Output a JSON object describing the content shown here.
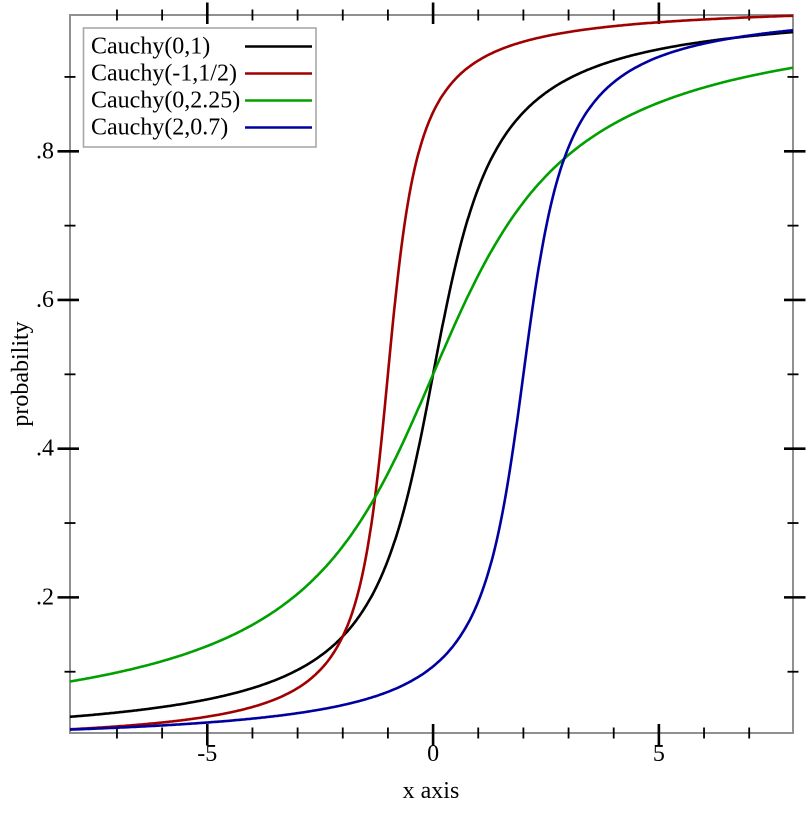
{
  "figure": {
    "background": "#ffffff",
    "frame_color": "#909090",
    "tick_color": "#000000",
    "legend_border_color": "#a8a8a8"
  },
  "chart_data": {
    "type": "line",
    "title": "",
    "xlabel": "x axis",
    "ylabel": "probability",
    "xlim": [
      -8.04,
      7.97
    ],
    "ylim": [
      0.0176,
      0.9833
    ],
    "grid": false,
    "legend_position": "top-left",
    "x_ticks": {
      "major_values": [
        -5,
        0,
        5
      ],
      "major_labels": [
        "-5",
        "0",
        "5"
      ],
      "minor_values": [
        -7,
        -6,
        -4,
        -3,
        -2,
        -1,
        1,
        2,
        3,
        4,
        6,
        7
      ]
    },
    "y_ticks": {
      "major_values": [
        0.2,
        0.4,
        0.6,
        0.8
      ],
      "major_labels": [
        ".2",
        ".4",
        ".6",
        ".8"
      ],
      "minor_values": [
        0.1,
        0.3,
        0.5,
        0.7,
        0.9
      ]
    },
    "curve_type": "cauchy-cdf",
    "formula": "y = 0.5 + atan((x - location) / scale) / PI",
    "series": [
      {
        "name": "Cauchy(0,1)",
        "location": 0,
        "scale": 1,
        "color": "#000000"
      },
      {
        "name": "Cauchy(-1,1/2)",
        "location": -1,
        "scale": 0.5,
        "color": "#a00000"
      },
      {
        "name": "Cauchy(0,2.25)",
        "location": 0,
        "scale": 2.25,
        "color": "#00a000"
      },
      {
        "name": "Cauchy(2,0.7)",
        "location": 2,
        "scale": 0.7,
        "color": "#0000a0"
      }
    ]
  }
}
